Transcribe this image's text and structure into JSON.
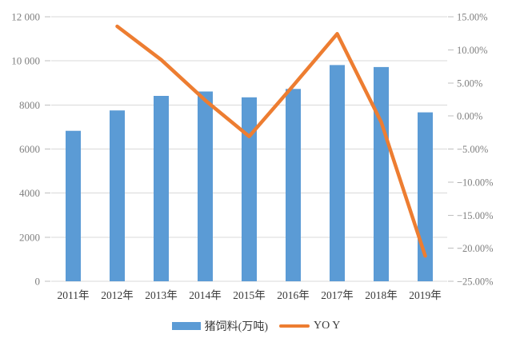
{
  "chart_data": {
    "type": "combo",
    "title": "",
    "categories": [
      "2011年",
      "2012年",
      "2013年",
      "2014年",
      "2015年",
      "2016年",
      "2017年",
      "2018年",
      "2019年"
    ],
    "series": [
      {
        "name": "猪饲料(万吨)",
        "type": "bar",
        "axis": "left",
        "color": "#5B9BD5",
        "values": [
          6827,
          7752,
          8411,
          8610,
          8344,
          8726,
          9810,
          9720,
          7663
        ]
      },
      {
        "name": "YO Y",
        "type": "line",
        "axis": "right",
        "color": "#ED7D31",
        "values": [
          null,
          13.55,
          8.5,
          2.37,
          -3.09,
          4.58,
          12.42,
          -0.92,
          -21.16
        ]
      }
    ],
    "left_axis": {
      "min": 0,
      "max": 12000,
      "step": 2000,
      "tick_labels": [
        "0",
        "2000",
        "4000",
        "6000",
        "8000",
        "10 000",
        "12 000"
      ]
    },
    "right_axis": {
      "min": -25,
      "max": 15,
      "step": 5,
      "tick_labels": [
        "15.00%",
        "10.00%",
        "5.00%",
        "0.00%",
        "−5.00%",
        "−10.00%",
        "−15.00%",
        "−20.00%",
        "−25.00%"
      ]
    },
    "grid": true,
    "legend_position": "bottom",
    "colors": {
      "background": "#FFFFFF",
      "grid": "#D9D9D9",
      "tick": "#BFBFBF",
      "axis_text": "#7F7F7F",
      "category_text": "#3A3A3A",
      "legend_text": "#3A3A3A"
    }
  }
}
